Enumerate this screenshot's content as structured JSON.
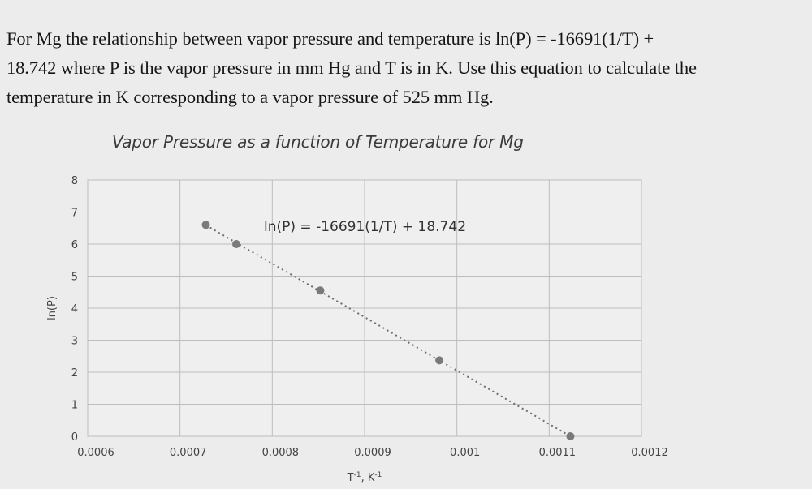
{
  "question": {
    "lines": [
      "For Mg the relationship between vapor pressure and temperature is ln(P) = -16691(1/T) +",
      "18.742 where P is the vapor pressure in mm Hg and T is in K. Use this equation to calculate the",
      "temperature in K corresponding to a vapor pressure of 525 mm Hg."
    ]
  },
  "chart_data": {
    "type": "scatter",
    "title": "Vapor Pressure as a function of Temperature for Mg",
    "xlabel": "T-1, K-1",
    "ylabel": "ln(P)",
    "xlim": [
      0.0006,
      0.0012
    ],
    "ylim": [
      0,
      8
    ],
    "x_ticks": [
      "0.0006",
      "0.0007",
      "0.0008",
      "0.0009",
      "0.001",
      "0.0011",
      "0.0012"
    ],
    "y_ticks": [
      "0",
      "1",
      "2",
      "3",
      "4",
      "5",
      "6",
      "7",
      "8"
    ],
    "grid": true,
    "legend": "none",
    "series": [
      {
        "name": "ln(P)",
        "x": [
          0.000728,
          0.000761,
          0.000852,
          0.000981,
          0.001123
        ],
        "y": [
          6.6,
          6.0,
          4.55,
          2.37,
          0.0
        ],
        "marker": "circle",
        "color": "#7a7a7a"
      }
    ],
    "trendline": {
      "type": "linear",
      "style": "dotted",
      "slope": -16691,
      "intercept": 18.742,
      "x_range": [
        0.000728,
        0.001123
      ],
      "equation_label": "ln(P) = -16691(1/T) + 18.742"
    }
  },
  "colors": {
    "background": "#ececec",
    "plot_background": "#efefef",
    "grid": "#bdbdbd",
    "marker": "#7a7a7a",
    "trendline": "#6e6e6e"
  }
}
